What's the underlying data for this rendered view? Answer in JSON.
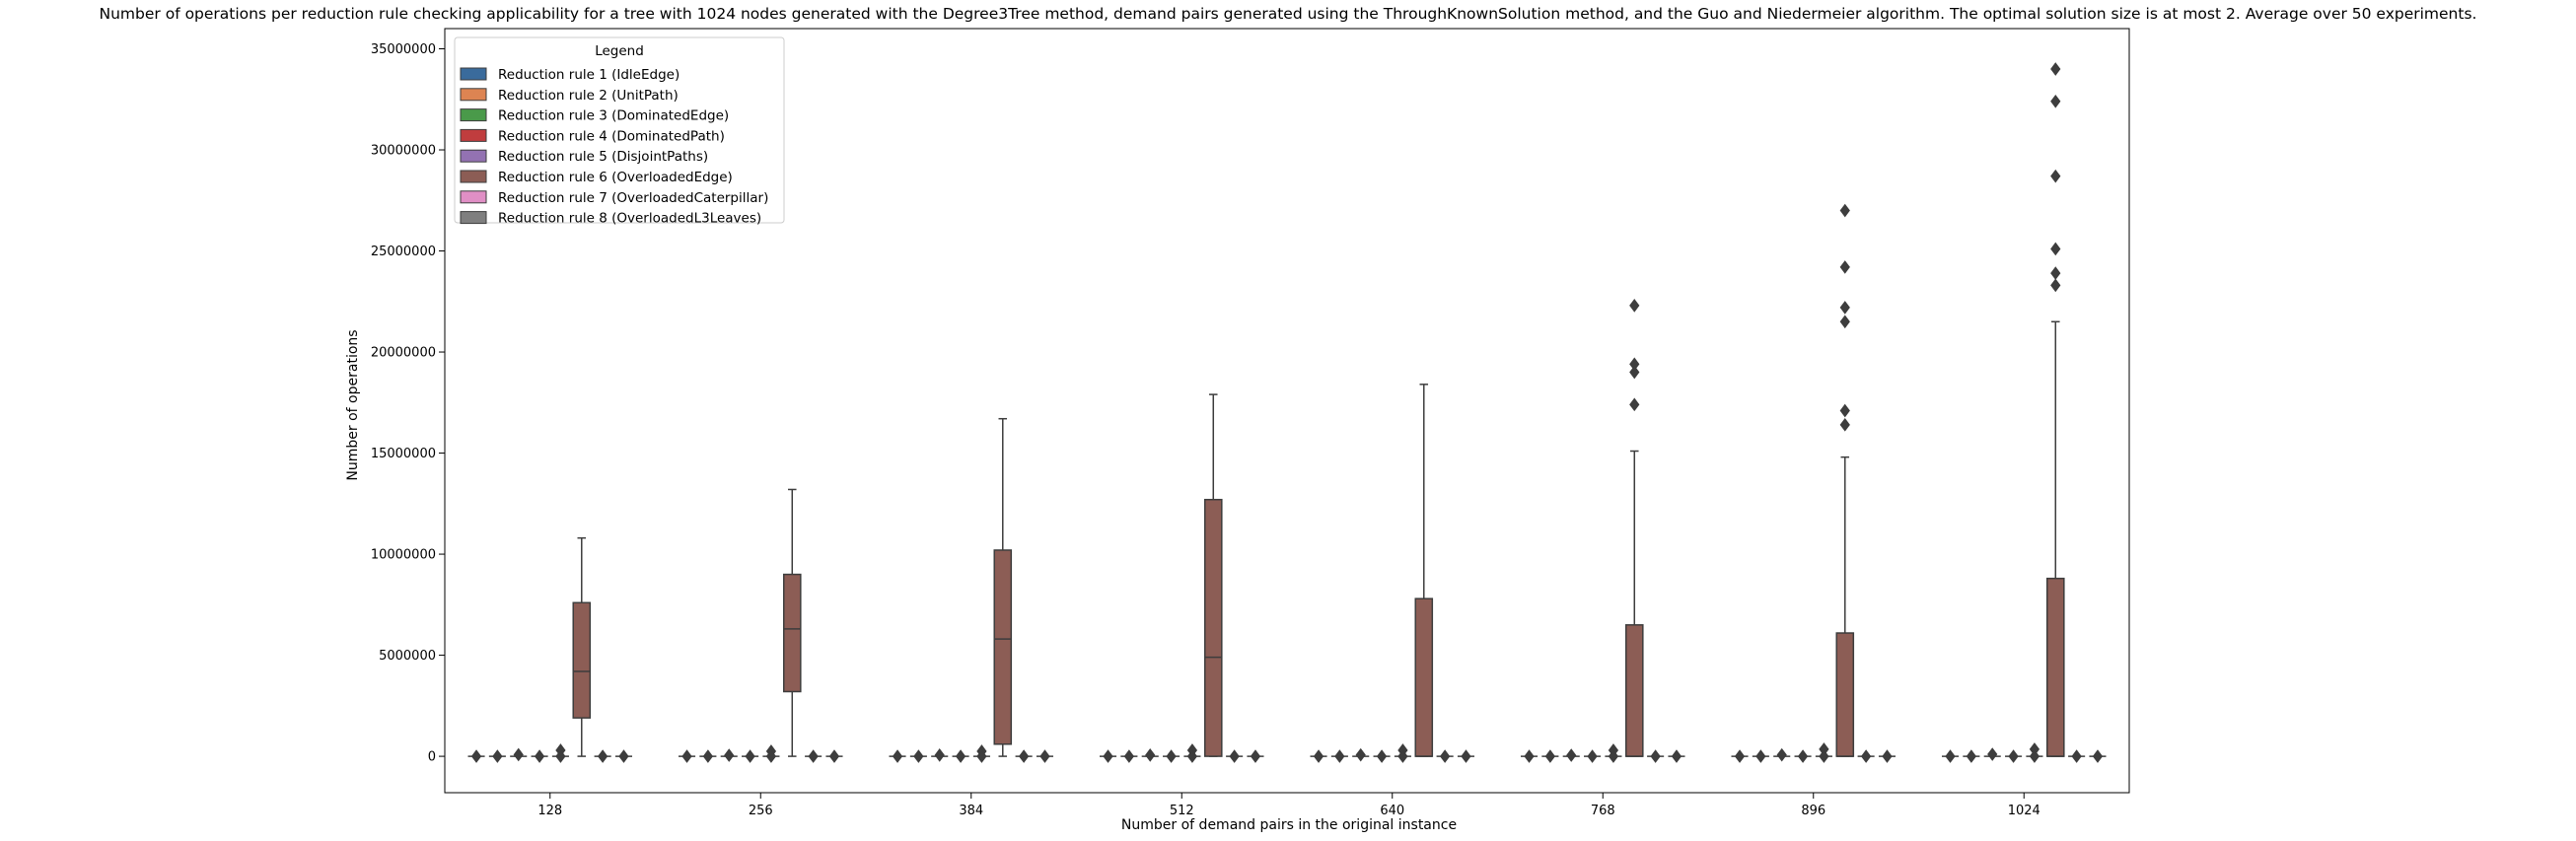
{
  "chart_data": {
    "type": "box",
    "title": "Number of operations per reduction rule checking applicability for a tree with 1024 nodes generated with the Degree3Tree method, demand pairs generated using the ThroughKnownSolution method, and the Guo and Niedermeier algorithm. The optimal solution size is at most 2. Average over 50 experiments.",
    "xlabel": "Number of demand pairs in the original instance",
    "ylabel": "Number of operations",
    "categories": [
      "128",
      "256",
      "384",
      "512",
      "640",
      "768",
      "896",
      "1024"
    ],
    "ylim": [
      -1800000,
      36000000
    ],
    "yticks": [
      0,
      5000000,
      10000000,
      15000000,
      20000000,
      25000000,
      30000000,
      35000000
    ],
    "ytick_labels": [
      "0",
      "5000000",
      "10000000",
      "15000000",
      "20000000",
      "25000000",
      "30000000",
      "35000000"
    ],
    "grid": false,
    "legend_title": "Legend",
    "legend_position": "top-left",
    "series": [
      {
        "name": "Reduction rule 1 (IdleEdge)",
        "color": "#3a6b9c"
      },
      {
        "name": "Reduction rule 2 (UnitPath)",
        "color": "#dd8452"
      },
      {
        "name": "Reduction rule 3 (DominatedEdge)",
        "color": "#4a9a4a"
      },
      {
        "name": "Reduction rule 4 (DominatedPath)",
        "color": "#c03d3e"
      },
      {
        "name": "Reduction rule 5 (DisjointPaths)",
        "color": "#9372b2"
      },
      {
        "name": "Reduction rule 6 (OverloadedEdge)",
        "color": "#8c5d55"
      },
      {
        "name": "Reduction rule 7 (OverloadedCaterpillar)",
        "color": "#e08fc5"
      },
      {
        "name": "Reduction rule 8 (OverloadedL3Leaves)",
        "color": "#7f7f7f"
      }
    ],
    "boxes_rule6": [
      {
        "category": "128",
        "whisker_low": 0,
        "q1": 1900000,
        "median": 4200000,
        "q3": 7600000,
        "whisker_high": 10800000,
        "outliers": []
      },
      {
        "category": "256",
        "whisker_low": 0,
        "q1": 3200000,
        "median": 6300000,
        "q3": 9000000,
        "whisker_high": 13200000,
        "outliers": []
      },
      {
        "category": "384",
        "whisker_low": 0,
        "q1": 600000,
        "median": 5800000,
        "q3": 10200000,
        "whisker_high": 16700000,
        "outliers": []
      },
      {
        "category": "512",
        "whisker_low": 0,
        "q1": 0,
        "median": 4900000,
        "q3": 12700000,
        "whisker_high": 17900000,
        "outliers": []
      },
      {
        "category": "640",
        "whisker_low": 0,
        "q1": 0,
        "median": 0,
        "q3": 7800000,
        "whisker_high": 18400000,
        "outliers": []
      },
      {
        "category": "768",
        "whisker_low": 0,
        "q1": 0,
        "median": 0,
        "q3": 6500000,
        "whisker_high": 15100000,
        "outliers": [
          17400000,
          19000000,
          19400000,
          22300000
        ]
      },
      {
        "category": "896",
        "whisker_low": 0,
        "q1": 0,
        "median": 0,
        "q3": 6100000,
        "whisker_high": 14800000,
        "outliers": [
          16400000,
          17100000,
          21500000,
          22200000,
          24200000,
          27000000
        ]
      },
      {
        "category": "1024",
        "whisker_low": 0,
        "q1": 0,
        "median": 0,
        "q3": 8800000,
        "whisker_high": 21500000,
        "outliers": [
          23300000,
          23900000,
          25100000,
          28700000,
          32400000,
          34000000
        ]
      }
    ],
    "other_rules_near_zero": [
      {
        "category": "128",
        "outliers": [
          [
            0
          ],
          [
            0
          ],
          [
            80000
          ],
          [
            0
          ],
          [
            300000,
            0
          ],
          [],
          [
            0
          ],
          [
            0
          ]
        ]
      },
      {
        "category": "256",
        "outliers": [
          [
            0
          ],
          [
            0
          ],
          [
            50000
          ],
          [
            0
          ],
          [
            250000,
            0
          ],
          [],
          [
            0
          ],
          [
            0
          ]
        ]
      },
      {
        "category": "384",
        "outliers": [
          [
            0
          ],
          [
            0
          ],
          [
            60000
          ],
          [
            0
          ],
          [
            250000,
            0
          ],
          [],
          [
            0
          ],
          [
            0
          ]
        ]
      },
      {
        "category": "512",
        "outliers": [
          [
            0
          ],
          [
            0
          ],
          [
            60000
          ],
          [
            0
          ],
          [
            300000,
            0
          ],
          [],
          [
            0
          ],
          [
            0
          ]
        ]
      },
      {
        "category": "640",
        "outliers": [
          [
            0
          ],
          [
            0
          ],
          [
            70000
          ],
          [
            0
          ],
          [
            300000,
            0
          ],
          [],
          [
            0
          ],
          [
            0
          ]
        ]
      },
      {
        "category": "768",
        "outliers": [
          [
            0
          ],
          [
            0
          ],
          [
            50000
          ],
          [
            0
          ],
          [
            300000,
            0
          ],
          [],
          [
            0
          ],
          [
            0
          ]
        ]
      },
      {
        "category": "896",
        "outliers": [
          [
            0
          ],
          [
            0
          ],
          [
            70000
          ],
          [
            0
          ],
          [
            350000,
            0
          ],
          [],
          [
            0
          ],
          [
            0
          ]
        ]
      },
      {
        "category": "1024",
        "outliers": [
          [
            0
          ],
          [
            0
          ],
          [
            100000
          ],
          [
            0
          ],
          [
            350000,
            0
          ],
          [],
          [
            0
          ],
          [
            0
          ]
        ]
      }
    ]
  }
}
